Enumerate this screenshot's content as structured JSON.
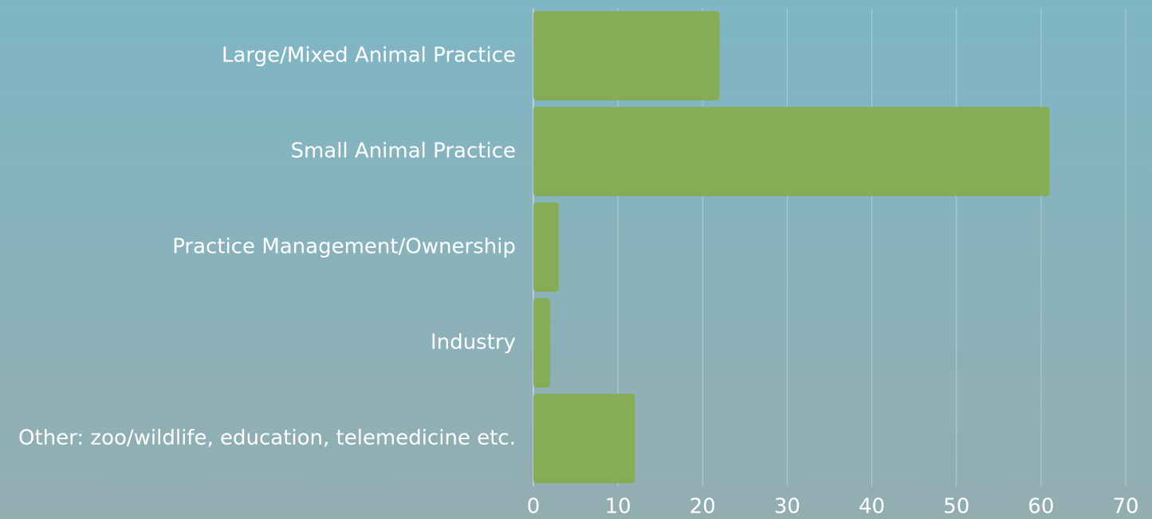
{
  "chart_data": {
    "type": "bar",
    "orientation": "horizontal",
    "categories": [
      "Large/Mixed Animal Practice",
      "Small Animal Practice",
      "Practice Management/Ownership",
      "Industry",
      "Other: zoo/wildlife, education, telemedicine etc."
    ],
    "values": [
      22,
      61,
      3,
      2,
      12
    ],
    "color": "#86ad55",
    "xlim": [
      0,
      70
    ],
    "xticks": [
      0,
      10,
      20,
      30,
      40,
      50,
      60,
      70
    ],
    "grid": true
  }
}
